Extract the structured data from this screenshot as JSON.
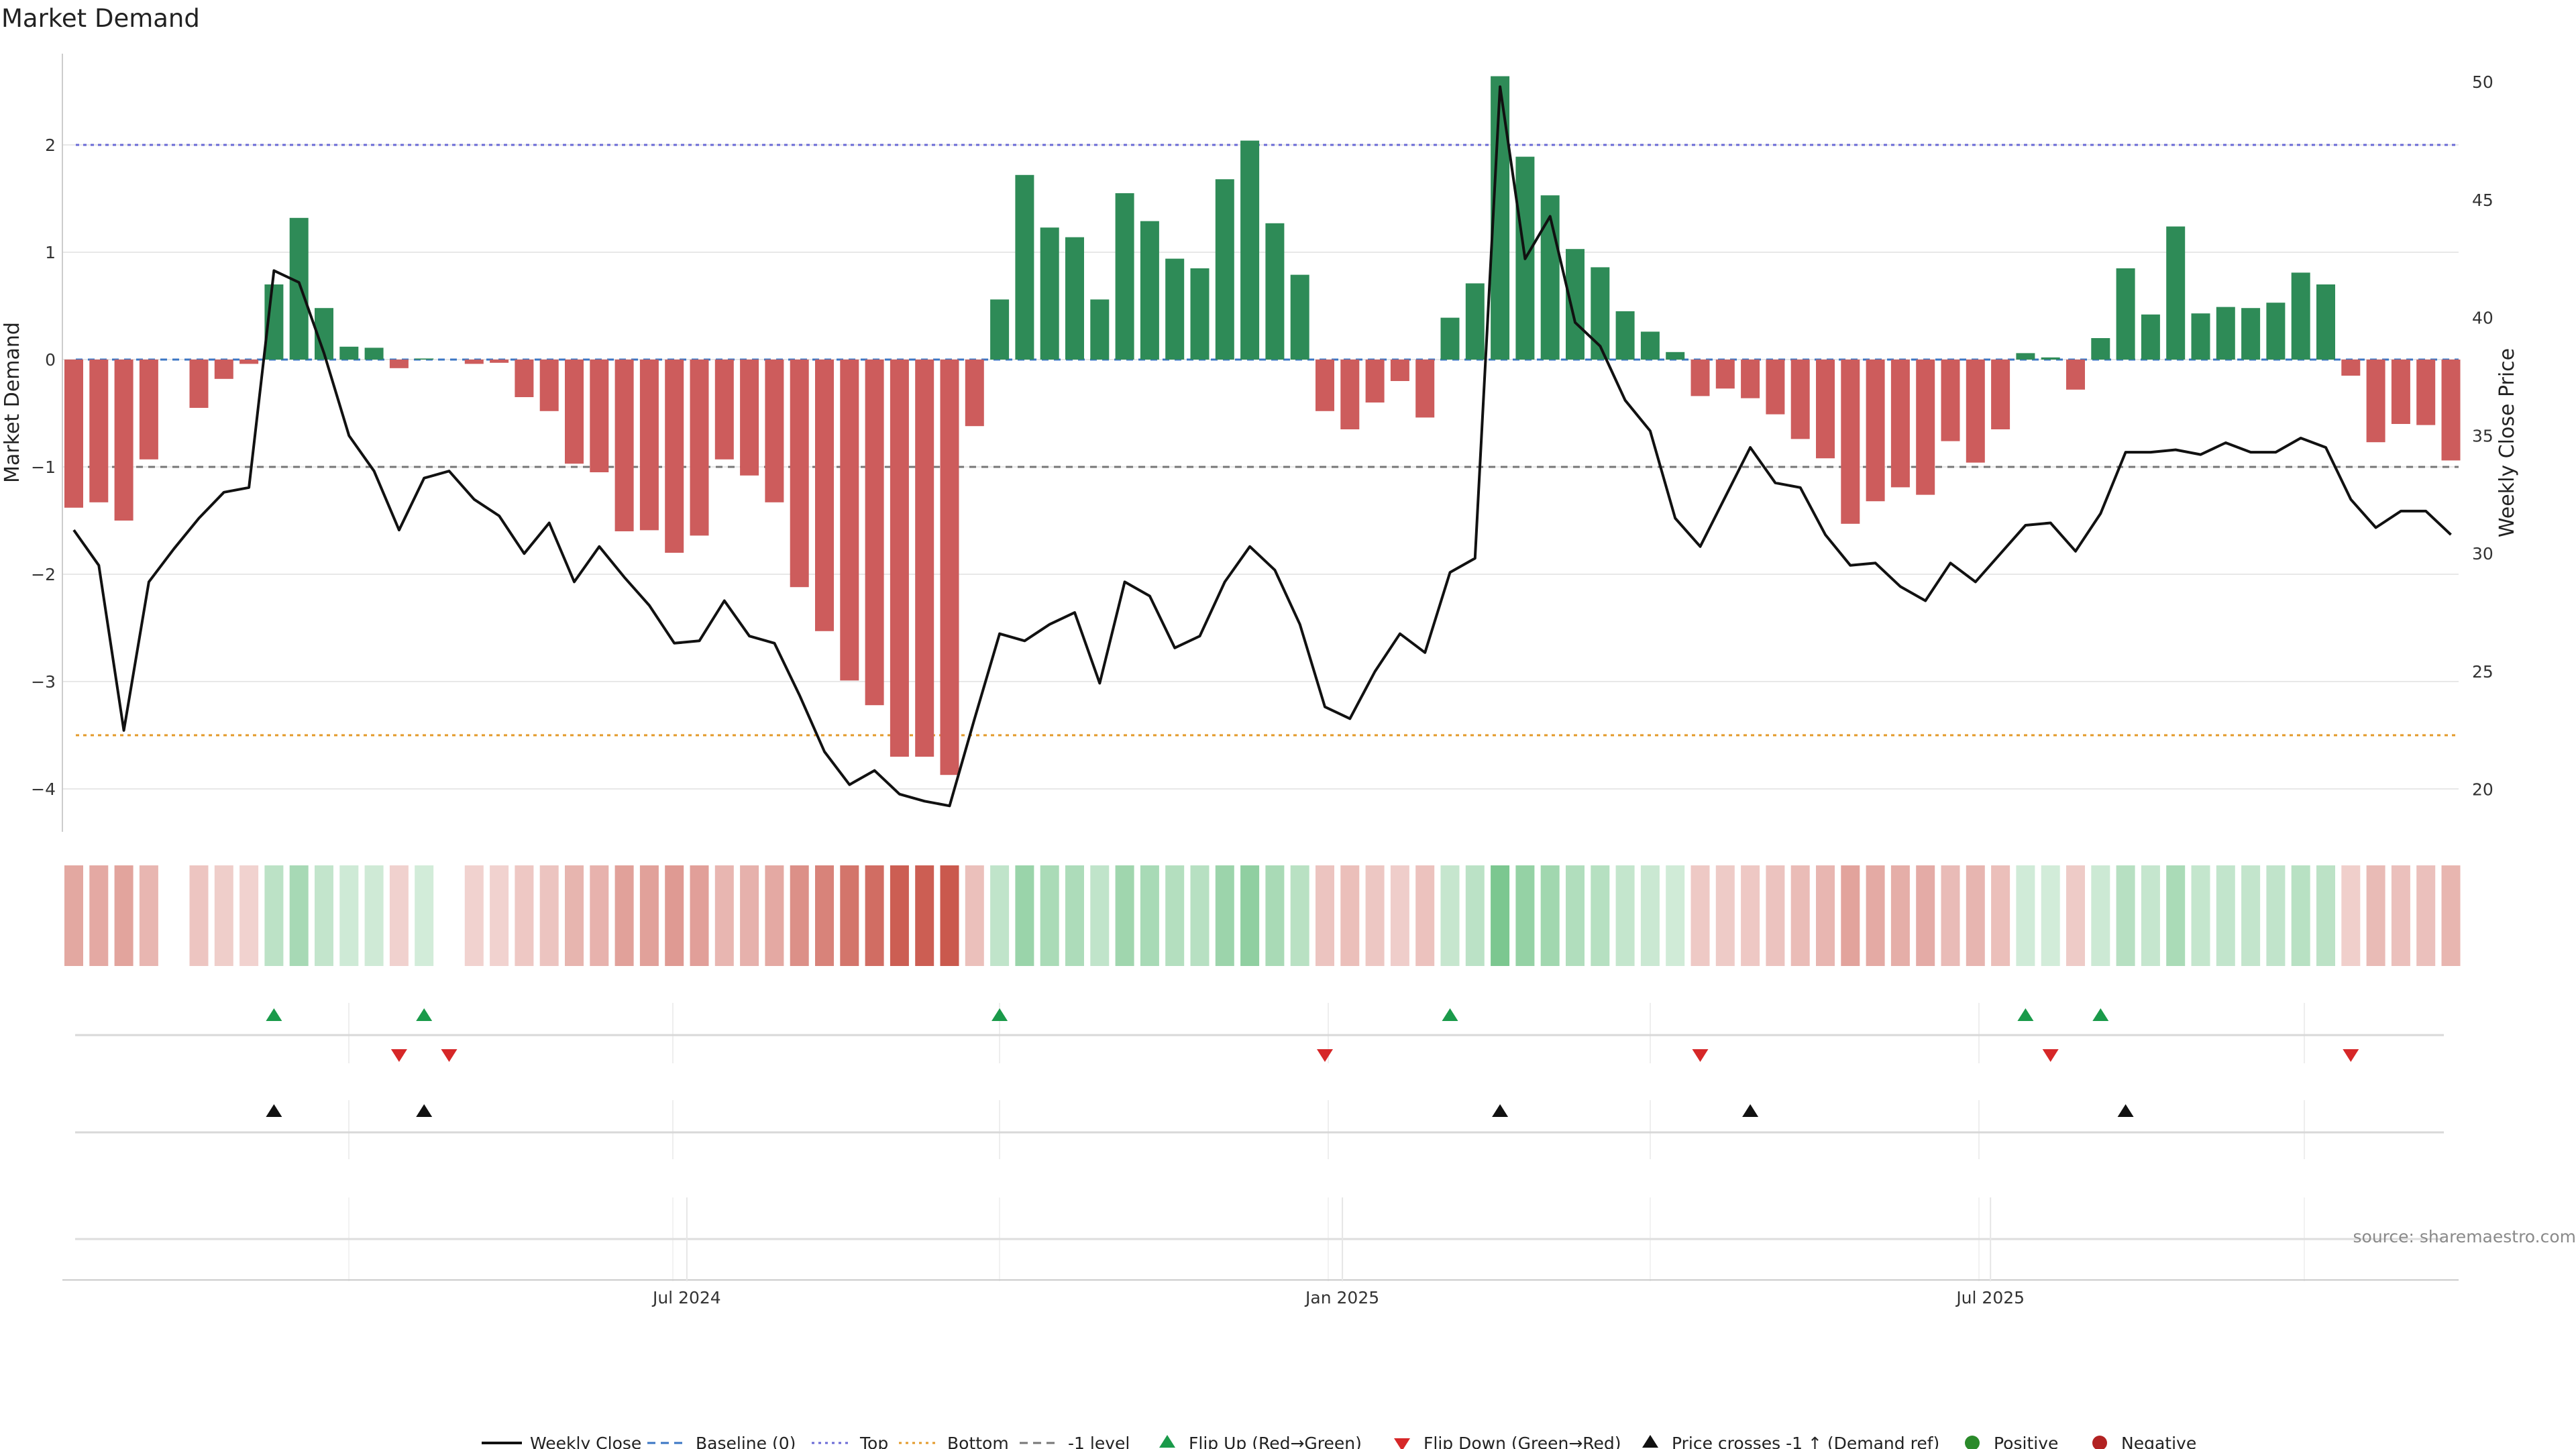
{
  "chart_data": {
    "type": "bar",
    "title": "Market Demand",
    "ylabel_left": "Market Demand",
    "ylabel_right": "Weekly Close Price",
    "ylim_left": [
      -4.4,
      2.85
    ],
    "ylim_right": [
      18.2,
      51.2
    ],
    "yticks_left": [
      2,
      1,
      0,
      -1,
      -2,
      -3,
      -4
    ],
    "yticks_left_labels": [
      "2",
      "1",
      "0",
      "−1",
      "−2",
      "−3",
      "−4"
    ],
    "yticks_right": [
      50,
      45,
      40,
      35,
      30,
      25,
      20
    ],
    "x_ticks": [
      {
        "label": "Jul 2024",
        "week": 24.5
      },
      {
        "label": "Jan 2025",
        "week": 50.7
      },
      {
        "label": "Jul 2025",
        "week": 76.6
      }
    ],
    "reference_lines": [
      {
        "name": "Top",
        "value": 2,
        "color": "#6a6ad6",
        "style": "dotted"
      },
      {
        "name": "Bottom",
        "value": -3.5,
        "color": "#e39a2a",
        "style": "dotted"
      },
      {
        "name": "-1 level",
        "value": -1,
        "color": "#777777",
        "style": "dashed"
      },
      {
        "name": "Baseline (0)",
        "value": 0,
        "color": "#3a76c4",
        "style": "dashed"
      }
    ],
    "demand": [
      -1.38,
      -1.33,
      -1.5,
      -0.93,
      0,
      -0.45,
      -0.18,
      -0.04,
      0.7,
      1.32,
      0.48,
      0.12,
      0.11,
      -0.08,
      0.01,
      0,
      -0.04,
      -0.03,
      -0.35,
      -0.48,
      -0.97,
      -1.05,
      -1.6,
      -1.59,
      -1.8,
      -1.64,
      -0.93,
      -1.08,
      -1.33,
      -2.12,
      -2.53,
      -2.99,
      -3.22,
      -3.7,
      -3.7,
      -3.87,
      -0.62,
      0.56,
      1.72,
      1.23,
      1.14,
      0.56,
      1.55,
      1.29,
      0.94,
      0.85,
      1.68,
      2.04,
      1.27,
      0.79,
      -0.48,
      -0.65,
      -0.4,
      -0.2,
      -0.54,
      0.39,
      0.71,
      2.64,
      1.89,
      1.53,
      1.03,
      0.86,
      0.45,
      0.26,
      0.07,
      -0.34,
      -0.27,
      -0.36,
      -0.51,
      -0.74,
      -0.92,
      -1.53,
      -1.32,
      -1.19,
      -1.26,
      -0.76,
      -0.96,
      -0.65,
      0.06,
      0.02,
      -0.28,
      0.2,
      0.85,
      0.42,
      1.24,
      0.43,
      0.49,
      0.48,
      0.53,
      0.81,
      0.7,
      -0.15,
      -0.77,
      -0.6,
      -0.61,
      -0.94
    ],
    "demand_colors": {
      "positive": "#2e8b57",
      "negative": "#cd5c5c"
    },
    "price": {
      "name": "Weekly Close",
      "values": [
        31,
        29.5,
        22.5,
        28.8,
        30.2,
        31.5,
        32.6,
        32.8,
        42,
        41.5,
        38.5,
        35,
        33.5,
        31,
        33.2,
        33.5,
        32.3,
        31.6,
        30,
        31.3,
        28.8,
        30.3,
        29,
        27.8,
        26.2,
        26.3,
        28,
        26.5,
        26.2,
        24,
        21.6,
        20.2,
        20.8,
        19.8,
        19.5,
        19.3,
        23,
        26.6,
        26.3,
        27,
        27.5,
        24.5,
        28.8,
        28.2,
        26,
        26.5,
        28.8,
        30.3,
        29.3,
        27,
        23.5,
        23,
        25,
        26.6,
        25.8,
        29.2,
        29.8,
        49.8,
        42.5,
        44.3,
        39.8,
        38.8,
        36.5,
        35.2,
        31.5,
        30.3,
        32.4,
        34.5,
        33,
        32.8,
        30.8,
        29.5,
        29.6,
        28.6,
        28,
        29.6,
        28.8,
        30,
        31.2,
        31.3,
        30.1,
        31.7,
        34.3,
        34.3,
        34.4,
        34.2,
        34.7,
        34.3,
        34.3,
        34.9,
        34.5,
        32.3,
        31.1,
        31.8,
        31.8,
        30.8
      ]
    },
    "flip_up_weeks": [
      8,
      14,
      37,
      55,
      78,
      81
    ],
    "flip_down_weeks": [
      13,
      15,
      50,
      65,
      79,
      91
    ],
    "price_cross_weeks": [
      8,
      14,
      57,
      67,
      82
    ],
    "legend": [
      {
        "label": "Weekly Close",
        "kind": "line",
        "color": "#111111"
      },
      {
        "label": "Baseline (0)",
        "kind": "dash",
        "color": "#3a76c4"
      },
      {
        "label": "Top",
        "kind": "dot",
        "color": "#6a6ad6"
      },
      {
        "label": "Bottom",
        "kind": "dot",
        "color": "#e39a2a"
      },
      {
        "label": "-1 level",
        "kind": "dash",
        "color": "#777777"
      },
      {
        "label": "Flip Up (Red→Green)",
        "kind": "tri-up",
        "color": "#1a9a4a"
      },
      {
        "label": "Flip Down (Green→Red)",
        "kind": "tri-down",
        "color": "#d62728"
      },
      {
        "label": "Price crosses -1 ↑ (Demand ref)",
        "kind": "tri-up",
        "color": "#111111"
      },
      {
        "label": "Positive",
        "kind": "circle",
        "color": "#2a8a2a"
      },
      {
        "label": "Negative",
        "kind": "circle",
        "color": "#b22222"
      }
    ],
    "source": "source: sharemaestro.com"
  }
}
